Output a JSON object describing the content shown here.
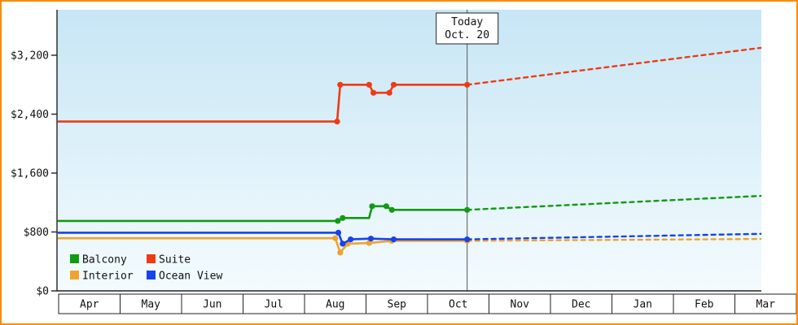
{
  "colors": {
    "frame_border": "#ff8a00",
    "plot_top": "#c7e6f5",
    "plot_bottom": "#f4fbfe",
    "axis": "#222222",
    "today_line": "#555555",
    "text": "#111111",
    "box_fill": "#ffffff",
    "balcony": "#129a12",
    "suite": "#ee3b14",
    "interior": "#efa32f",
    "ocean_view": "#1743e8"
  },
  "chart_data": {
    "type": "line",
    "title": "",
    "today": {
      "label_line1": "Today",
      "label_line2": "Oct. 20",
      "x": 6.645
    },
    "months": [
      "Apr",
      "May",
      "Jun",
      "Jul",
      "Aug",
      "Sep",
      "Oct",
      "Nov",
      "Dec",
      "Jan",
      "Feb",
      "Mar"
    ],
    "y_ticks": [
      {
        "value": 0,
        "label": "$0"
      },
      {
        "value": 800,
        "label": "$800"
      },
      {
        "value": 1600,
        "label": "$1,600"
      },
      {
        "value": 2400,
        "label": "$2,400"
      },
      {
        "value": 3200,
        "label": "$3,200"
      }
    ],
    "ylim": [
      0,
      3800
    ],
    "x_range_months": 12,
    "forecast_end_x": 11.42,
    "grid": false,
    "legend_position": "bottom-left-inside",
    "legend": [
      {
        "name": "Balcony",
        "color": "balcony"
      },
      {
        "name": "Suite",
        "color": "suite"
      },
      {
        "name": "Interior",
        "color": "interior"
      },
      {
        "name": "Ocean View",
        "color": "ocean_view"
      }
    ],
    "series": [
      {
        "name": "Interior",
        "color": "interior",
        "history": [
          [
            0,
            715,
            0
          ],
          [
            4.5,
            715,
            1
          ],
          [
            4.58,
            520,
            1
          ],
          [
            4.7,
            640,
            1
          ],
          [
            5.05,
            650,
            1
          ],
          [
            5.42,
            680,
            1
          ],
          [
            6.645,
            680,
            1
          ]
        ],
        "forecast": [
          [
            6.645,
            680
          ],
          [
            11.42,
            705
          ]
        ]
      },
      {
        "name": "Ocean View",
        "color": "ocean_view",
        "history": [
          [
            0,
            790,
            0
          ],
          [
            4.55,
            790,
            1
          ],
          [
            4.62,
            640,
            1
          ],
          [
            4.75,
            700,
            1
          ],
          [
            5.08,
            710,
            1
          ],
          [
            5.45,
            700,
            1
          ],
          [
            6.645,
            700,
            1
          ]
        ],
        "forecast": [
          [
            6.645,
            700
          ],
          [
            11.42,
            775
          ]
        ]
      },
      {
        "name": "Balcony",
        "color": "balcony",
        "history": [
          [
            0,
            950,
            0
          ],
          [
            4.54,
            950,
            1
          ],
          [
            4.62,
            990,
            1
          ],
          [
            5.05,
            990,
            0
          ],
          [
            5.1,
            1150,
            1
          ],
          [
            5.33,
            1150,
            1
          ],
          [
            5.42,
            1100,
            1
          ],
          [
            6.645,
            1100,
            1
          ]
        ],
        "forecast": [
          [
            6.645,
            1100
          ],
          [
            11.42,
            1290
          ]
        ]
      },
      {
        "name": "Suite",
        "color": "suite",
        "history": [
          [
            0,
            2300,
            0
          ],
          [
            4.53,
            2300,
            1
          ],
          [
            4.58,
            2800,
            1
          ],
          [
            5.05,
            2800,
            1
          ],
          [
            5.12,
            2690,
            1
          ],
          [
            5.38,
            2690,
            1
          ],
          [
            5.45,
            2800,
            1
          ],
          [
            6.645,
            2800,
            1
          ]
        ],
        "forecast": [
          [
            6.645,
            2800
          ],
          [
            11.42,
            3300
          ]
        ]
      }
    ]
  }
}
